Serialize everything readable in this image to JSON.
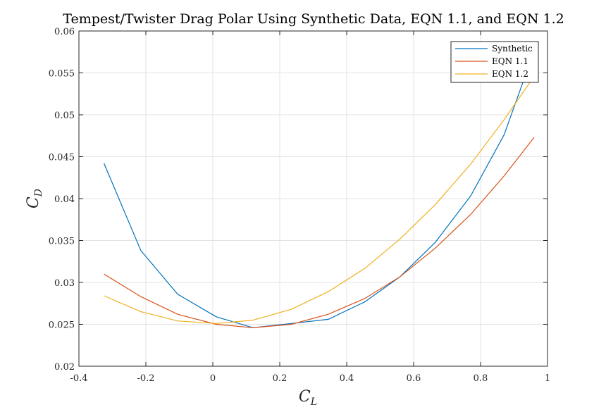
{
  "chart_data": {
    "type": "line",
    "title": "Tempest/Twister Drag Polar Using Synthetic Data, EQN 1.1, and EQN 1.2",
    "xlabel": {
      "main": "C",
      "sub": "L"
    },
    "ylabel": {
      "main": "C",
      "sub": "D"
    },
    "xlim": [
      -0.4,
      1
    ],
    "ylim": [
      0.02,
      0.06
    ],
    "xticks": [
      -0.4,
      -0.2,
      0,
      0.2,
      0.4,
      0.6,
      0.8,
      1
    ],
    "xtick_labels": [
      "-0.4",
      "-0.2",
      "0",
      "0.2",
      "0.4",
      "0.6",
      "0.8",
      "1"
    ],
    "yticks": [
      0.02,
      0.025,
      0.03,
      0.035,
      0.04,
      0.045,
      0.05,
      0.055,
      0.06
    ],
    "ytick_labels": [
      "0.02",
      "0.025",
      "0.03",
      "0.035",
      "0.04",
      "0.045",
      "0.05",
      "0.055",
      "0.06"
    ],
    "grid": true,
    "legend_position": "top-right",
    "series": [
      {
        "name": "Synthetic",
        "color": "#0072BD",
        "x": [
          -0.325,
          -0.215,
          -0.105,
          0.01,
          0.12,
          0.235,
          0.345,
          0.455,
          0.56,
          0.665,
          0.77,
          0.87,
          0.96
        ],
        "y": [
          0.0442,
          0.0338,
          0.0286,
          0.0259,
          0.0246,
          0.0251,
          0.0256,
          0.0277,
          0.0307,
          0.0348,
          0.0403,
          0.0476,
          0.0576
        ]
      },
      {
        "name": "EQN 1.1",
        "color": "#D95319",
        "x": [
          -0.325,
          -0.215,
          -0.105,
          0.01,
          0.12,
          0.235,
          0.345,
          0.455,
          0.56,
          0.665,
          0.77,
          0.87,
          0.96
        ],
        "y": [
          0.031,
          0.0283,
          0.0262,
          0.025,
          0.0246,
          0.025,
          0.0262,
          0.0281,
          0.0307,
          0.0341,
          0.0381,
          0.0427,
          0.0473
        ]
      },
      {
        "name": "EQN 1.2",
        "color": "#EDB120",
        "x": [
          -0.325,
          -0.215,
          -0.105,
          0.01,
          0.12,
          0.235,
          0.345,
          0.455,
          0.56,
          0.665,
          0.77,
          0.87,
          0.96
        ],
        "y": [
          0.0284,
          0.0265,
          0.0254,
          0.0251,
          0.0255,
          0.0268,
          0.0289,
          0.0317,
          0.0352,
          0.0393,
          0.0441,
          0.0494,
          0.0546
        ]
      }
    ]
  }
}
